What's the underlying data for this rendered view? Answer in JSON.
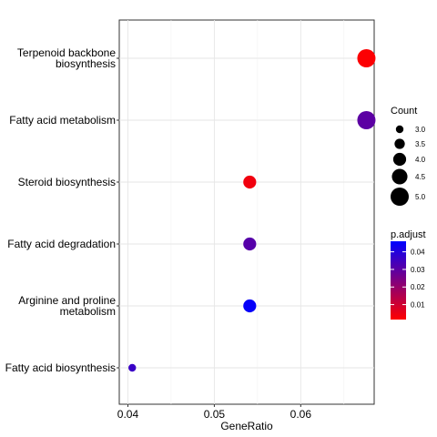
{
  "chart_data": {
    "type": "scatter",
    "xlabel": "GeneRatio",
    "ylabel": "",
    "xlim": [
      0.039,
      0.0685
    ],
    "x_ticks": [
      0.04,
      0.05,
      0.06
    ],
    "x_tick_labels": [
      "0.04",
      "0.05",
      "0.06"
    ],
    "grid": true,
    "legend_position": "right",
    "categories": [
      "Terpenoid backbone biosynthesis",
      "Fatty acid metabolism",
      "Steroid biosynthesis",
      "Fatty acid degradation",
      "Arginine and proline metabolism",
      "Fatty acid biosynthesis"
    ],
    "category_label_lines": [
      [
        "Terpenoid backbone",
        "biosynthesis"
      ],
      [
        "Fatty acid metabolism"
      ],
      [
        "Steroid biosynthesis"
      ],
      [
        "Fatty acid degradation"
      ],
      [
        "Arginine and proline",
        "metabolism"
      ],
      [
        "Fatty acid biosynthesis"
      ]
    ],
    "points": [
      {
        "term": "Terpenoid backbone biosynthesis",
        "GeneRatio": 0.0676,
        "Count": 5,
        "p_adjust": 0.002
      },
      {
        "term": "Fatty acid metabolism",
        "GeneRatio": 0.0676,
        "Count": 5,
        "p_adjust": 0.03
      },
      {
        "term": "Steroid biosynthesis",
        "GeneRatio": 0.0541,
        "Count": 4,
        "p_adjust": 0.004
      },
      {
        "term": "Fatty acid degradation",
        "GeneRatio": 0.0541,
        "Count": 4,
        "p_adjust": 0.031
      },
      {
        "term": "Arginine and proline metabolism",
        "GeneRatio": 0.0541,
        "Count": 4,
        "p_adjust": 0.045
      },
      {
        "term": "Fatty acid biosynthesis",
        "GeneRatio": 0.0405,
        "Count": 3,
        "p_adjust": 0.036
      }
    ],
    "size_legend": {
      "title": "Count",
      "values": [
        3.0,
        3.5,
        4.0,
        4.5,
        5.0
      ],
      "labels": [
        "3.0",
        "3.5",
        "4.0",
        "4.5",
        "5.0"
      ]
    },
    "color_legend": {
      "title": "p.adjust",
      "range": [
        0.0015,
        0.046
      ],
      "ticks": [
        0.01,
        0.02,
        0.03,
        0.04
      ],
      "tick_labels": [
        "0.01",
        "0.02",
        "0.03",
        "0.04"
      ],
      "low_color": "#ff0000",
      "high_color": "#0000ff"
    }
  }
}
